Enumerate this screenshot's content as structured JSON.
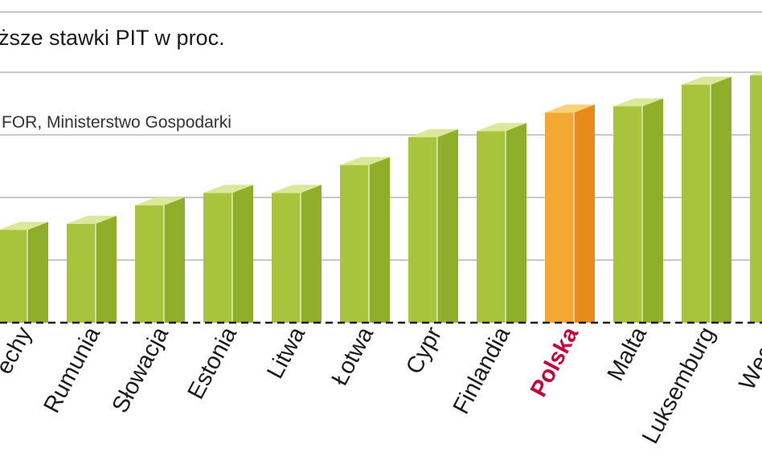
{
  "chart_data": {
    "type": "bar",
    "title": "ższe stawki PIT w proc.",
    "source": "FOR, Ministerstwo Gospodarki",
    "categories": [
      "echy",
      "Rumunia",
      "Słowacja",
      "Estonia",
      "Litwa",
      "Łotwa",
      "Cypr",
      "Finlandia",
      "Polska",
      "Malta",
      "Luksemburg",
      "Węgry"
    ],
    "values": [
      15,
      16,
      19,
      21,
      21,
      25.5,
      30,
      31,
      34,
      35,
      38.5,
      40
    ],
    "highlight": "Polska",
    "grid": true,
    "colors": {
      "bar_front": "#a8c43c",
      "bar_side": "#8fae2a",
      "bar_top": "#dbe89a",
      "highlight_front": "#f2a832",
      "highlight_side": "#e68a1a",
      "highlight_top": "#f8d277",
      "highlight_label": "#c8003a",
      "gridline": "#c8c8c8",
      "baseline": "#1a1a1a"
    }
  }
}
